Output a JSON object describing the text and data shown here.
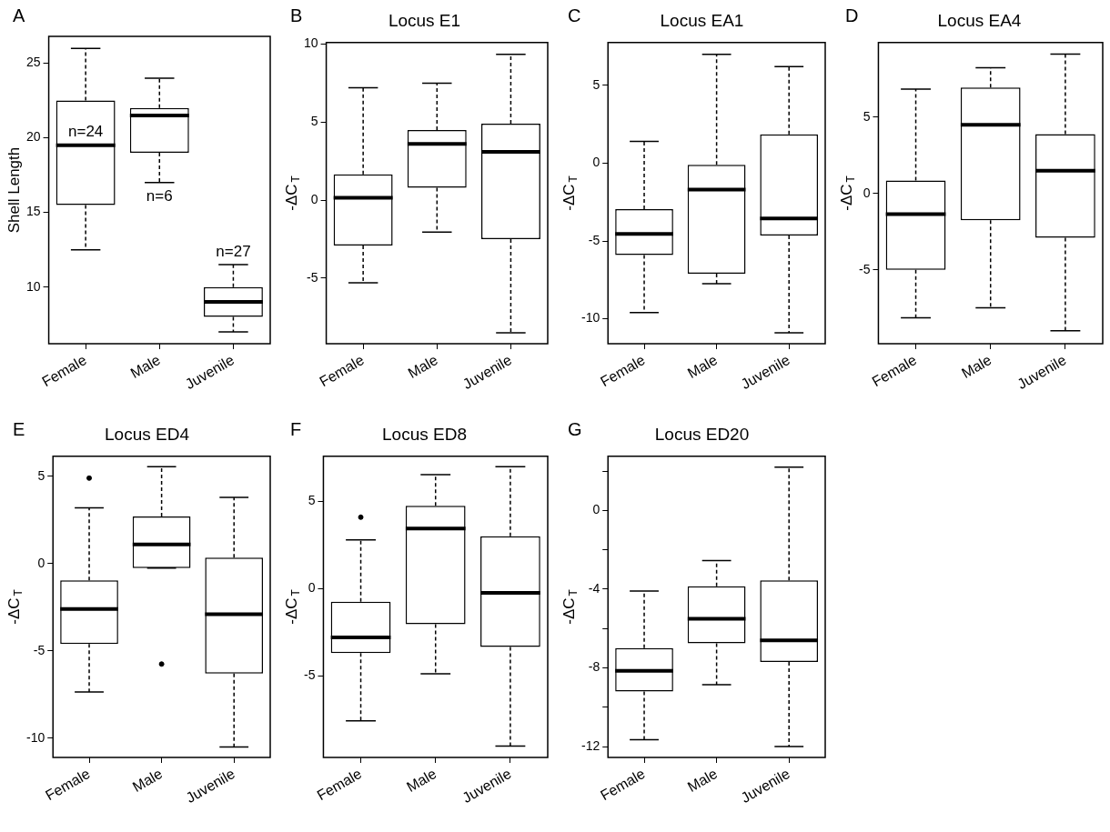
{
  "chart_data": [
    {
      "type": "box",
      "ylabel": "Shell Length",
      "annotations": [
        "A",
        "n=24",
        "n=6",
        "n=27"
      ],
      "categories": [
        "Female",
        "Male",
        "Juvenile"
      ],
      "grid": false,
      "ylim": [
        6.2,
        26.8
      ],
      "yticks": [
        10,
        15,
        20,
        25
      ],
      "boxes": [
        {
          "low": 12.5,
          "q1": 15.5,
          "median": 19.5,
          "q3": 22.5,
          "high": 26.0
        },
        {
          "low": 17.0,
          "q1": 19.0,
          "median": 21.5,
          "q3": 22.0,
          "high": 24.0
        },
        {
          "low": 7.0,
          "q1": 8.0,
          "median": 9.0,
          "q3": 10.0,
          "high": 11.5
        }
      ]
    },
    {
      "type": "box",
      "title": "Locus E1",
      "ylabel": "-ΔC$_{T}$",
      "annotations": [
        "B"
      ],
      "categories": [
        "Female",
        "Male",
        "Juvenile"
      ],
      "grid": false,
      "ylim": [
        -9.2,
        10.1
      ],
      "yticks": [
        -5,
        0,
        5,
        10
      ],
      "boxes": [
        {
          "low": -5.3,
          "q1": -2.9,
          "median": 0.15,
          "q3": 1.65,
          "high": 7.2
        },
        {
          "low": -2.05,
          "q1": 0.8,
          "median": 3.6,
          "q3": 4.5,
          "high": 7.5
        },
        {
          "low": -8.5,
          "q1": -2.5,
          "median": 3.1,
          "q3": 4.9,
          "high": 9.35
        }
      ]
    },
    {
      "type": "box",
      "title": "Locus EA1",
      "ylabel": "-ΔC$_{T}$",
      "annotations": [
        "C"
      ],
      "categories": [
        "Female",
        "Male",
        "Juvenile"
      ],
      "grid": false,
      "ylim": [
        -11.6,
        7.75
      ],
      "yticks": [
        -10,
        -5,
        0,
        5
      ],
      "boxes": [
        {
          "low": -9.6,
          "q1": -5.9,
          "median": -4.55,
          "q3": -2.95,
          "high": 1.4
        },
        {
          "low": -7.75,
          "q1": -7.1,
          "median": -1.7,
          "q3": -0.1,
          "high": 7.0
        },
        {
          "low": -10.9,
          "q1": -4.65,
          "median": -3.55,
          "q3": 1.85,
          "high": 6.2
        }
      ]
    },
    {
      "type": "box",
      "title": "Locus EA4",
      "ylabel": "-ΔC$_{T}$",
      "annotations": [
        "D"
      ],
      "categories": [
        "Female",
        "Male",
        "Juvenile"
      ],
      "grid": false,
      "ylim": [
        -9.85,
        9.9
      ],
      "yticks": [
        -5,
        0,
        5
      ],
      "boxes": [
        {
          "low": -8.15,
          "q1": -5.0,
          "median": -1.35,
          "q3": 0.85,
          "high": 6.85
        },
        {
          "low": -7.5,
          "q1": -1.75,
          "median": 4.5,
          "q3": 6.95,
          "high": 8.25
        },
        {
          "low": -9.0,
          "q1": -2.9,
          "median": 1.5,
          "q3": 3.9,
          "high": 9.15
        }
      ]
    },
    {
      "type": "box",
      "title": "Locus ED4",
      "ylabel": "-ΔC$_{T}$",
      "annotations": [
        "E"
      ],
      "categories": [
        "Female",
        "Male",
        "Juvenile"
      ],
      "grid": false,
      "ylim": [
        -11.1,
        6.15
      ],
      "yticks": [
        -10,
        -5,
        0,
        5
      ],
      "boxes": [
        {
          "low": -7.35,
          "q1": -4.6,
          "median": -2.6,
          "q3": -0.95,
          "high": 3.2,
          "outliers": [
            4.9
          ]
        },
        {
          "low": -0.25,
          "q1": -0.25,
          "median": 1.1,
          "q3": 2.7,
          "high": 5.55,
          "outliers": [
            -5.75
          ]
        },
        {
          "low": -10.5,
          "q1": -6.3,
          "median": -2.9,
          "q3": 0.35,
          "high": 3.8
        }
      ]
    },
    {
      "type": "box",
      "title": "Locus ED8",
      "ylabel": "-ΔC$_{T}$",
      "annotations": [
        "F"
      ],
      "categories": [
        "Female",
        "Male",
        "Juvenile"
      ],
      "grid": false,
      "ylim": [
        -9.7,
        7.6
      ],
      "yticks": [
        -5,
        0,
        5
      ],
      "boxes": [
        {
          "low": -7.6,
          "q1": -3.7,
          "median": -2.8,
          "q3": -0.75,
          "high": 2.8,
          "outliers": [
            4.1
          ]
        },
        {
          "low": -4.9,
          "q1": -2.05,
          "median": 3.45,
          "q3": 4.75,
          "high": 6.55
        },
        {
          "low": -9.05,
          "q1": -3.35,
          "median": -0.25,
          "q3": 3.0,
          "high": 7.0
        }
      ]
    },
    {
      "type": "box",
      "title": "Locus ED20",
      "ylabel": "-ΔC$_{T}$",
      "annotations": [
        "G"
      ],
      "categories": [
        "Female",
        "Male",
        "Juvenile"
      ],
      "grid": false,
      "ylim": [
        -12.55,
        2.75
      ],
      "yticks": [
        -12,
        {
          "value": -10,
          "label": null
        },
        -8,
        {
          "value": -6,
          "label": null
        },
        -4,
        {
          "value": -2,
          "label": null
        },
        0,
        {
          "value": 2,
          "label": null
        }
      ],
      "boxes": [
        {
          "low": -11.65,
          "q1": -9.2,
          "median": -8.15,
          "q3": -7.0,
          "high": -4.1
        },
        {
          "low": -8.85,
          "q1": -6.75,
          "median": -5.5,
          "q3": -3.85,
          "high": -2.55
        },
        {
          "low": -12.0,
          "q1": -7.7,
          "median": -6.6,
          "q3": -3.55,
          "high": 2.2
        }
      ]
    }
  ]
}
